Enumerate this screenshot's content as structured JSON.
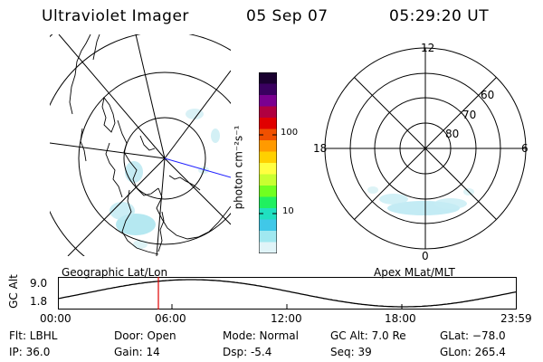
{
  "header": {
    "instrument": "Ultraviolet Imager",
    "date": "05 Sep 07",
    "time": "05:29:20 UT"
  },
  "colorbar": {
    "label": "photon cm⁻²s⁻¹",
    "ticks": [
      "100",
      "10"
    ],
    "colors": [
      "#1a0030",
      "#3a0060",
      "#7a0090",
      "#b00040",
      "#e00000",
      "#f05000",
      "#ff9a00",
      "#ffd000",
      "#ffff40",
      "#c8ff30",
      "#70ff20",
      "#20f060",
      "#20e0c0",
      "#40c8e8",
      "#a0e8f0",
      "#e0f4f8"
    ]
  },
  "left_panel": {
    "caption": "Geographic Lat/Lon"
  },
  "right_panel": {
    "caption": "Apex MLat/MLT",
    "mlt_labels": {
      "top": "12",
      "bottom": "0",
      "left": "18",
      "right": "6"
    },
    "mlat_labels": [
      "60",
      "70",
      "80"
    ]
  },
  "altitude_plot": {
    "ylabel": "GC Alt",
    "ymax_label": "9.0",
    "ymin_label": "1.8",
    "x_ticks": [
      "00:00",
      "06:00",
      "12:00",
      "18:00",
      "23:59"
    ]
  },
  "info": {
    "flt": "Flt: LBHL",
    "ip": "IP: 36.0",
    "door": "Door: Open",
    "gain": "Gain: 14",
    "mode": "Mode: Normal",
    "dsp": "Dsp:    -5.4",
    "gcalt": "GC Alt: 7.0 Re",
    "seq": "Seq: 39",
    "glat": "GLat: −78.0",
    "glon": "GLon: 265.4"
  }
}
